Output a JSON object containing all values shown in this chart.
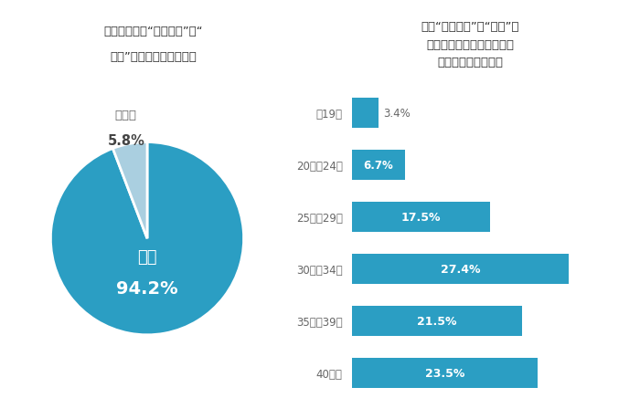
{
  "pie_values": [
    94.2,
    5.8
  ],
  "pie_colors": [
    "#2b9ec3",
    "#aacfe0"
  ],
  "pie_labels": [
    "はい",
    "いいえ"
  ],
  "pie_pcts": [
    "94.2%",
    "5.8%"
  ],
  "pie_title_line1": "ご自身の髪の“ダメージ”や“",
  "pie_title_line2": "老化”が気になりますか？",
  "bar_title_line1": "髪の“ダメージ”や“老化”が",
  "bar_title_line2": "気になるようになったのは",
  "bar_title_line3": "いつ頂からですか？",
  "bar_categories": [
    "～19歳",
    "20歳～24歳",
    "25歳～29歳",
    "30歳～34歳",
    "35歳～39歳",
    "40歳～"
  ],
  "bar_values": [
    3.4,
    6.7,
    17.5,
    27.4,
    21.5,
    23.5
  ],
  "bar_color": "#2b9ec3",
  "bar_pcts": [
    "3.4%",
    "6.7%",
    "17.5%",
    "27.4%",
    "21.5%",
    "23.5%"
  ],
  "bg_color": "#ffffff",
  "title_bg_color": "#dde8f0",
  "title_text_color": "#333333",
  "label_text_color": "#666666"
}
